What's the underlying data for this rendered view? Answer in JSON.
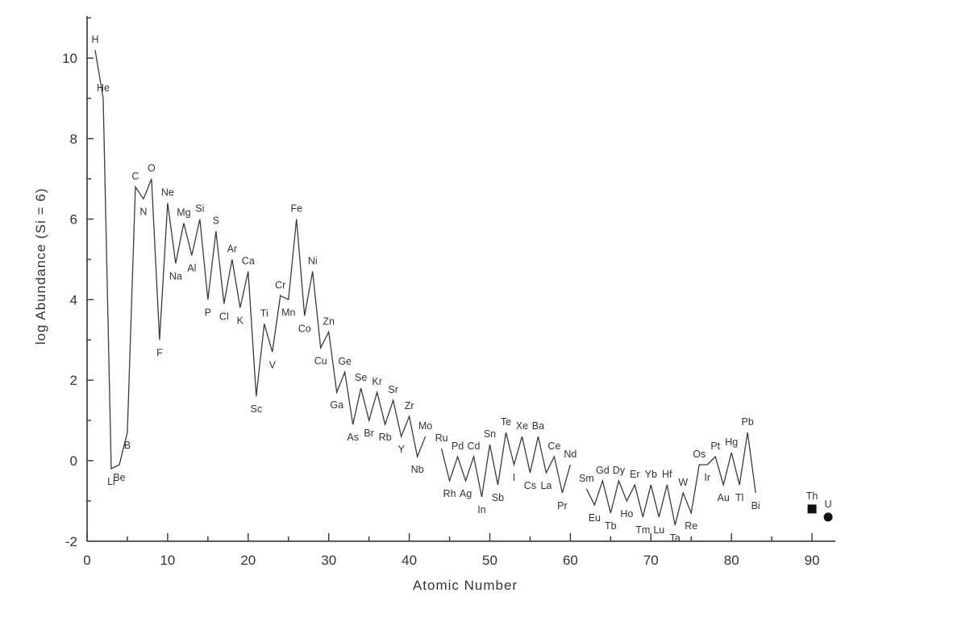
{
  "chart_data": {
    "type": "line",
    "xlabel": "Atomic Number",
    "ylabel": "log Abundance (Si = 6)",
    "xlim": [
      0,
      93
    ],
    "ylim": [
      -2,
      11
    ],
    "x_ticks": [
      0,
      10,
      20,
      30,
      40,
      50,
      60,
      70,
      80,
      90
    ],
    "y_ticks": [
      -2,
      0,
      2,
      4,
      6,
      8,
      10
    ],
    "segments": [
      {
        "points": [
          {
            "x": 1,
            "y": 10.2,
            "label": "H"
          },
          {
            "x": 2,
            "y": 9.0,
            "label": "He"
          },
          {
            "x": 3,
            "y": -0.2,
            "label": "Li"
          },
          {
            "x": 4,
            "y": -0.1,
            "label": "Be"
          },
          {
            "x": 5,
            "y": 0.7,
            "label": "B"
          },
          {
            "x": 6,
            "y": 6.8,
            "label": "C"
          },
          {
            "x": 7,
            "y": 6.5,
            "label": "N"
          },
          {
            "x": 8,
            "y": 7.0,
            "label": "O"
          },
          {
            "x": 9,
            "y": 3.0,
            "label": "F"
          },
          {
            "x": 10,
            "y": 6.4,
            "label": "Ne"
          },
          {
            "x": 11,
            "y": 4.9,
            "label": "Na"
          },
          {
            "x": 12,
            "y": 5.9,
            "label": "Mg"
          },
          {
            "x": 13,
            "y": 5.1,
            "label": "Al"
          },
          {
            "x": 14,
            "y": 6.0,
            "label": "Si"
          },
          {
            "x": 15,
            "y": 4.0,
            "label": "P"
          },
          {
            "x": 16,
            "y": 5.7,
            "label": "S"
          },
          {
            "x": 17,
            "y": 3.9,
            "label": "Cl"
          },
          {
            "x": 18,
            "y": 5.0,
            "label": "Ar"
          },
          {
            "x": 19,
            "y": 3.8,
            "label": "K"
          },
          {
            "x": 20,
            "y": 4.7,
            "label": "Ca"
          },
          {
            "x": 21,
            "y": 1.6,
            "label": "Sc"
          },
          {
            "x": 22,
            "y": 3.4,
            "label": "Ti"
          },
          {
            "x": 23,
            "y": 2.7,
            "label": "V"
          },
          {
            "x": 24,
            "y": 4.1,
            "label": "Cr"
          },
          {
            "x": 25,
            "y": 4.0,
            "label": "Mn"
          },
          {
            "x": 26,
            "y": 6.0,
            "label": "Fe"
          },
          {
            "x": 27,
            "y": 3.6,
            "label": "Co"
          },
          {
            "x": 28,
            "y": 4.7,
            "label": "Ni"
          },
          {
            "x": 29,
            "y": 2.8,
            "label": "Cu"
          },
          {
            "x": 30,
            "y": 3.2,
            "label": "Zn"
          },
          {
            "x": 31,
            "y": 1.7,
            "label": "Ga"
          },
          {
            "x": 32,
            "y": 2.2,
            "label": "Ge"
          },
          {
            "x": 33,
            "y": 0.9,
            "label": "As"
          },
          {
            "x": 34,
            "y": 1.8,
            "label": "Se"
          },
          {
            "x": 35,
            "y": 1.0,
            "label": "Br"
          },
          {
            "x": 36,
            "y": 1.7,
            "label": "Kr"
          },
          {
            "x": 37,
            "y": 0.9,
            "label": "Rb"
          },
          {
            "x": 38,
            "y": 1.5,
            "label": "Sr"
          },
          {
            "x": 39,
            "y": 0.6,
            "label": "Y"
          },
          {
            "x": 40,
            "y": 1.1,
            "label": "Zr"
          },
          {
            "x": 41,
            "y": 0.1,
            "label": "Nb"
          },
          {
            "x": 42,
            "y": 0.6,
            "label": "Mo"
          }
        ]
      },
      {
        "points": [
          {
            "x": 44,
            "y": 0.3,
            "label": "Ru"
          },
          {
            "x": 45,
            "y": -0.5,
            "label": "Rh"
          },
          {
            "x": 46,
            "y": 0.1,
            "label": "Pd"
          },
          {
            "x": 47,
            "y": -0.5,
            "label": "Ag"
          },
          {
            "x": 48,
            "y": 0.1,
            "label": "Cd"
          },
          {
            "x": 49,
            "y": -0.9,
            "label": "In"
          },
          {
            "x": 50,
            "y": 0.4,
            "label": "Sn"
          },
          {
            "x": 51,
            "y": -0.6,
            "label": "Sb"
          },
          {
            "x": 52,
            "y": 0.7,
            "label": "Te"
          },
          {
            "x": 53,
            "y": -0.1,
            "label": "I"
          },
          {
            "x": 54,
            "y": 0.6,
            "label": "Xe"
          },
          {
            "x": 55,
            "y": -0.3,
            "label": "Cs"
          },
          {
            "x": 56,
            "y": 0.6,
            "label": "Ba"
          },
          {
            "x": 57,
            "y": -0.3,
            "label": "La"
          },
          {
            "x": 58,
            "y": 0.1,
            "label": "Ce"
          },
          {
            "x": 59,
            "y": -0.8,
            "label": "Pr"
          },
          {
            "x": 60,
            "y": -0.1,
            "label": "Nd"
          }
        ]
      },
      {
        "points": [
          {
            "x": 62,
            "y": -0.7,
            "label": "Sm"
          },
          {
            "x": 63,
            "y": -1.1,
            "label": "Eu"
          },
          {
            "x": 64,
            "y": -0.5,
            "label": "Gd"
          },
          {
            "x": 65,
            "y": -1.3,
            "label": "Tb"
          },
          {
            "x": 66,
            "y": -0.5,
            "label": "Dy"
          },
          {
            "x": 67,
            "y": -1.0,
            "label": "Ho"
          },
          {
            "x": 68,
            "y": -0.6,
            "label": "Er"
          },
          {
            "x": 69,
            "y": -1.4,
            "label": "Tm"
          },
          {
            "x": 70,
            "y": -0.6,
            "label": "Yb"
          },
          {
            "x": 71,
            "y": -1.4,
            "label": "Lu"
          },
          {
            "x": 72,
            "y": -0.6,
            "label": "Hf"
          },
          {
            "x": 73,
            "y": -1.6,
            "label": "Ta"
          },
          {
            "x": 74,
            "y": -0.8,
            "label": "W"
          },
          {
            "x": 75,
            "y": -1.3,
            "label": "Re"
          },
          {
            "x": 76,
            "y": -0.1,
            "label": "Os"
          },
          {
            "x": 77,
            "y": -0.1,
            "label": "Ir"
          },
          {
            "x": 78,
            "y": 0.1,
            "label": "Pt"
          },
          {
            "x": 79,
            "y": -0.6,
            "label": "Au"
          },
          {
            "x": 80,
            "y": 0.2,
            "label": "Hg"
          },
          {
            "x": 81,
            "y": -0.6,
            "label": "Tl"
          },
          {
            "x": 82,
            "y": 0.7,
            "label": "Pb"
          },
          {
            "x": 83,
            "y": -0.8,
            "label": "Bi"
          }
        ]
      }
    ],
    "isolated_points": [
      {
        "x": 90,
        "y": -1.2,
        "label": "Th",
        "marker": "square"
      },
      {
        "x": 92,
        "y": -1.4,
        "label": "U",
        "marker": "circle"
      }
    ],
    "grid": false,
    "legend": "none"
  }
}
